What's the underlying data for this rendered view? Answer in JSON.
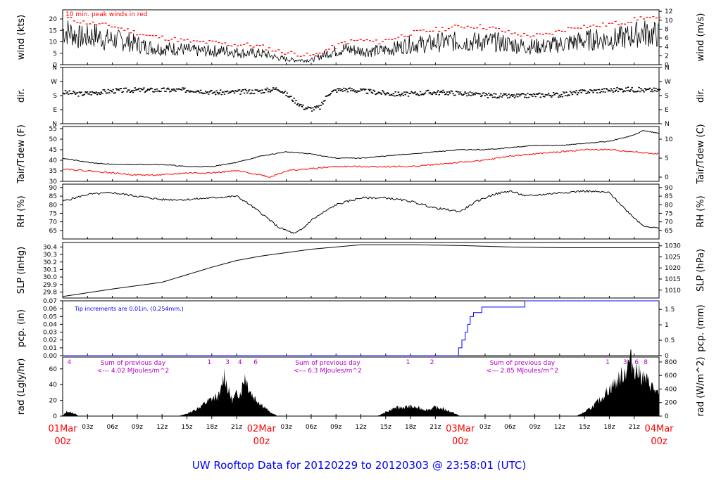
{
  "title": "UW Rooftop Data for 20120229  to  20120303 @ 23:58:01  (UTC)",
  "colors": {
    "axis": "#000000",
    "series": "#000000",
    "peak": "#ff0000",
    "dew": "#ff0000",
    "pcp": "#0000ff",
    "title": "#0000ff",
    "annot": "#b000c0",
    "date": "#ff0000"
  },
  "time_axis": {
    "hour_ticks": [
      "03z",
      "06z",
      "09z",
      "12z",
      "15z",
      "18z",
      "21z",
      "03z",
      "06z",
      "09z",
      "12z",
      "15z",
      "18z",
      "21z",
      "03z",
      "06z",
      "09z",
      "12z",
      "15z",
      "18z",
      "21z"
    ],
    "hour_tick_hours": [
      3,
      6,
      9,
      12,
      15,
      18,
      21,
      27,
      30,
      33,
      36,
      39,
      42,
      45,
      51,
      54,
      57,
      60,
      63,
      66,
      69
    ],
    "dates": [
      {
        "label": "01Mar",
        "sub": "00z",
        "hour": 0
      },
      {
        "label": "02Mar",
        "sub": "00z",
        "hour": 24
      },
      {
        "label": "03Mar",
        "sub": "00z",
        "hour": 48
      },
      {
        "label": "04Mar",
        "sub": "00z",
        "hour": 72
      }
    ],
    "range_hours": [
      0,
      72
    ]
  },
  "chart_data": [
    {
      "type": "line",
      "id": "wind",
      "ylabel": "wind (kts)",
      "ylabel_right": "wind (m/s)",
      "ylim": [
        0,
        24
      ],
      "yticks": [
        0,
        5,
        10,
        15,
        20
      ],
      "right_ticks": [
        0,
        2,
        4,
        6,
        8,
        10,
        12
      ],
      "right_factor": 1.944,
      "annotation": "10 min. peak winds in red",
      "series": [
        {
          "name": "wind speed",
          "x": [
            0,
            1,
            2,
            3,
            4,
            5,
            6,
            8,
            10,
            12,
            14,
            16,
            18,
            20,
            22,
            24,
            26,
            28,
            30,
            32,
            33,
            34,
            36,
            38,
            40,
            42,
            44,
            46,
            48,
            50,
            52,
            54,
            56,
            58,
            60,
            62,
            64,
            66,
            68,
            70,
            72
          ],
          "values": [
            15,
            14,
            12,
            12,
            13,
            11,
            11,
            10,
            8,
            7,
            7,
            6,
            6,
            6,
            5,
            5,
            3,
            2,
            2,
            5,
            6,
            7,
            6,
            6,
            7,
            9,
            9,
            10,
            10,
            10,
            10,
            9,
            8,
            8,
            9,
            10,
            11,
            11,
            12,
            14,
            13
          ]
        },
        {
          "name": "peak wind",
          "x": [
            0,
            2,
            4,
            6,
            8,
            10,
            12,
            14,
            16,
            18,
            20,
            22,
            24,
            26,
            28,
            30,
            32,
            34,
            36,
            38,
            40,
            42,
            44,
            46,
            48,
            50,
            52,
            54,
            56,
            58,
            60,
            62,
            64,
            66,
            68,
            70,
            72
          ],
          "values": [
            21,
            19,
            18,
            17,
            15,
            13,
            12,
            11,
            10,
            10,
            9,
            9,
            8,
            6,
            5,
            4,
            7,
            10,
            11,
            10,
            12,
            14,
            15,
            16,
            17,
            17,
            16,
            14,
            13,
            13,
            15,
            17,
            17,
            18,
            19,
            21,
            20
          ]
        }
      ]
    },
    {
      "type": "scatter",
      "id": "dir",
      "ylabel": "dir.",
      "ylabel_right": "dir.",
      "ylim": [
        0,
        360
      ],
      "yticks": [
        "N",
        "E",
        "S",
        "W",
        "N"
      ],
      "ytick_values": [
        0,
        90,
        180,
        270,
        360
      ],
      "series": [
        {
          "name": "direction",
          "x": [
            0,
            2,
            4,
            6,
            8,
            10,
            12,
            14,
            16,
            18,
            20,
            22,
            24,
            26,
            28,
            29,
            30,
            31,
            32,
            33,
            34,
            36,
            38,
            40,
            42,
            44,
            46,
            48,
            50,
            52,
            54,
            56,
            58,
            60,
            62,
            64,
            66,
            68,
            70,
            72
          ],
          "values": [
            200,
            190,
            200,
            210,
            215,
            215,
            215,
            215,
            215,
            200,
            200,
            205,
            210,
            225,
            145,
            105,
            95,
            105,
            195,
            215,
            220,
            210,
            200,
            190,
            190,
            200,
            200,
            195,
            185,
            180,
            175,
            180,
            185,
            185,
            200,
            210,
            215,
            220,
            215,
            215
          ]
        }
      ]
    },
    {
      "type": "line",
      "id": "temp",
      "ylabel": "Tair/Tdew (F)",
      "ylabel_right": "Tair/Tdew (C)",
      "ylim": [
        30,
        56
      ],
      "yticks": [
        30,
        35,
        40,
        45,
        50,
        55
      ],
      "right_ticks": [
        0,
        5,
        10
      ],
      "series": [
        {
          "name": "Tair",
          "x": [
            0,
            3,
            6,
            9,
            12,
            15,
            18,
            21,
            24,
            27,
            30,
            33,
            36,
            39,
            42,
            45,
            48,
            51,
            54,
            57,
            60,
            63,
            66,
            69,
            70,
            72
          ],
          "values": [
            41,
            39,
            38,
            38,
            38,
            37,
            37,
            39,
            42,
            44,
            43,
            41,
            41,
            42,
            43,
            44,
            45,
            45,
            46,
            47,
            47,
            48,
            49,
            52,
            54,
            53
          ]
        },
        {
          "name": "Tdew",
          "x": [
            0,
            3,
            6,
            9,
            12,
            15,
            18,
            21,
            24,
            25,
            27,
            30,
            33,
            36,
            39,
            42,
            45,
            48,
            51,
            54,
            57,
            60,
            63,
            66,
            69,
            72
          ],
          "values": [
            36,
            35,
            34,
            33,
            33,
            34,
            34,
            35,
            33,
            32,
            35,
            36,
            37,
            37,
            37,
            37,
            38,
            39,
            40,
            42,
            43,
            44,
            45,
            45,
            44,
            43
          ]
        }
      ]
    },
    {
      "type": "line",
      "id": "rh",
      "ylabel": "RH (%)",
      "ylabel_right": "RH (%)",
      "ylim": [
        60,
        92
      ],
      "yticks": [
        65,
        70,
        75,
        80,
        85,
        90
      ],
      "right_ticks": [
        65,
        70,
        75,
        80,
        85,
        90
      ],
      "series": [
        {
          "name": "RH",
          "x": [
            0,
            3,
            6,
            9,
            12,
            15,
            18,
            21,
            22,
            24,
            26,
            28,
            29,
            30,
            33,
            36,
            39,
            42,
            45,
            48,
            50,
            52,
            54,
            56,
            60,
            63,
            66,
            68,
            70,
            72
          ],
          "values": [
            82,
            86,
            87,
            85,
            83,
            83,
            84,
            85,
            82,
            75,
            67,
            63,
            66,
            71,
            80,
            84,
            84,
            82,
            78,
            76,
            82,
            86,
            88,
            85,
            87,
            88,
            87,
            77,
            68,
            66
          ]
        }
      ]
    },
    {
      "type": "line",
      "id": "slp",
      "ylabel": "SLP (inHg)",
      "ylabel_right": "SLP (hPa)",
      "ylim": [
        29.72,
        30.46
      ],
      "yticks": [
        29.8,
        29.9,
        30.0,
        30.1,
        30.2,
        30.3,
        30.4
      ],
      "right_ticks": [
        1005,
        1010,
        1015,
        1020,
        1025,
        1030
      ],
      "series": [
        {
          "name": "SLP",
          "x": [
            0,
            6,
            12,
            18,
            21,
            24,
            30,
            36,
            42,
            48,
            54,
            60,
            66,
            72
          ],
          "values": [
            29.74,
            29.84,
            29.93,
            30.13,
            30.22,
            30.28,
            30.37,
            30.43,
            30.43,
            30.42,
            30.4,
            30.39,
            30.39,
            30.39
          ]
        }
      ]
    },
    {
      "type": "line",
      "id": "pcp",
      "ylabel": "pcp. (in)",
      "ylabel_right": "pcp. (mm)",
      "ylim": [
        0,
        0.07
      ],
      "yticks": [
        0.0,
        0.01,
        0.02,
        0.03,
        0.04,
        0.05,
        0.06,
        0.07
      ],
      "right_ticks": [
        0,
        0.5,
        1,
        1.5
      ],
      "annotation": "Tip increments are 0.01in. (0.254mm.)",
      "series": [
        {
          "name": "precip",
          "x": [
            0,
            47.8,
            48.2,
            48.6,
            48.9,
            49.2,
            49.6,
            50.6,
            55.8,
            72
          ],
          "values": [
            0,
            0.01,
            0.02,
            0.03,
            0.04,
            0.05,
            0.055,
            0.062,
            0.07,
            0.07
          ]
        }
      ]
    },
    {
      "type": "area",
      "id": "rad",
      "ylabel": "rad (Lgly/hr)",
      "ylabel_right": "rad (W/m^2)",
      "ylim": [
        0,
        75
      ],
      "yticks": [
        0,
        20,
        40,
        60
      ],
      "right_ticks": [
        0,
        200,
        400,
        600,
        800
      ],
      "sums": [
        {
          "text": "Sum of previous day",
          "value": "<--- 4.02 MJoules/m^2",
          "hour": 4
        },
        {
          "text": "Sum of previous day",
          "value": "<--- 6.3 MJoules/m^2",
          "hour": 27.5
        },
        {
          "text": "Sum of previous day",
          "value": "<--- 2.85 MJoules/m^2",
          "hour": 51
        }
      ],
      "markers": [
        {
          "t": "4",
          "h": 0.8
        },
        {
          "t": "1",
          "h": 17.7
        },
        {
          "t": "3",
          "h": 19.9
        },
        {
          "t": "4",
          "h": 21.4
        },
        {
          "t": "6",
          "h": 23.3
        },
        {
          "t": "1",
          "h": 41.7
        },
        {
          "t": "2",
          "h": 44.6
        },
        {
          "t": "1",
          "h": 65.8
        },
        {
          "t": "3",
          "h": 67.9
        },
        {
          "t": "6",
          "h": 69.3
        },
        {
          "t": "8",
          "h": 70.4
        }
      ],
      "series": [
        {
          "name": "radiation",
          "x": [
            0,
            0.5,
            1.5,
            2,
            14,
            15,
            16,
            17,
            18,
            19,
            19.5,
            20,
            20.5,
            21,
            21.5,
            22,
            22.5,
            23,
            24,
            25,
            26,
            38,
            39,
            40,
            42,
            43,
            44,
            45,
            46,
            47,
            48,
            62,
            63,
            64,
            65,
            66,
            67,
            68,
            68.5,
            69,
            70,
            71,
            72
          ],
          "values": [
            0,
            6,
            3,
            0,
            0,
            3,
            8,
            15,
            22,
            26,
            55,
            32,
            20,
            28,
            30,
            52,
            35,
            25,
            15,
            5,
            0,
            0,
            5,
            10,
            12,
            10,
            8,
            11,
            9,
            5,
            0,
            0,
            5,
            12,
            22,
            35,
            45,
            58,
            72,
            62,
            50,
            40,
            25
          ]
        }
      ]
    }
  ]
}
